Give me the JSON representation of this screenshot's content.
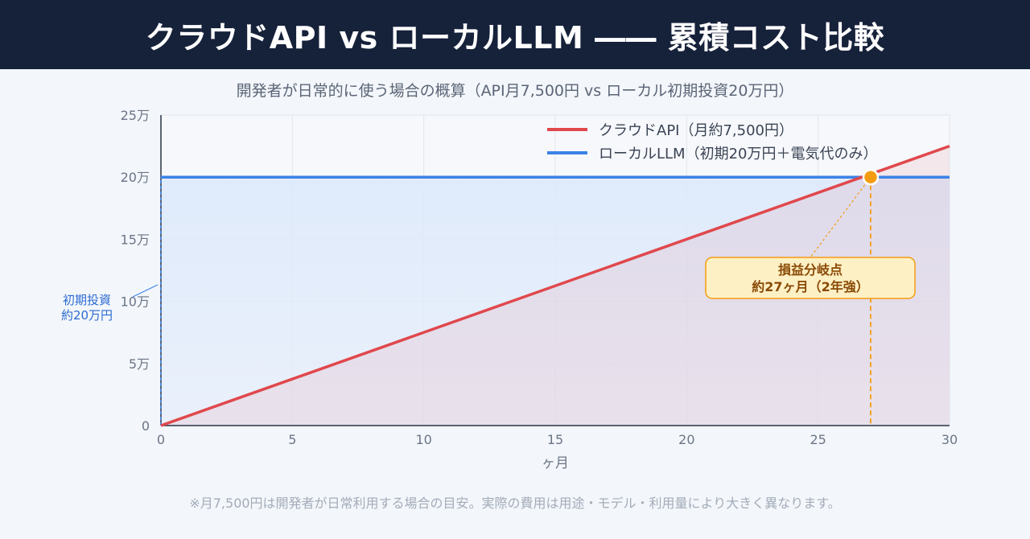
{
  "header": {
    "title": "クラウドAPI vs ローカルLLM ―― 累積コスト比較"
  },
  "footnote": "※月7,500円は開発者が日常利用する場合の目安。実際の費用は用途・モデル・利用量により大きく異なります。",
  "colors": {
    "cloud": "#e0484c",
    "local": "#3b82e6",
    "breakeven": "#f39c12"
  },
  "chart_data": {
    "type": "line",
    "title": "開発者が日常的に使う場合の概算（API月7,500円 vs ローカル初期投資20万円）",
    "xlabel": "ヶ月",
    "ylabel": "",
    "xlim": [
      0,
      30
    ],
    "ylim": [
      0,
      250000
    ],
    "xticks": [
      0,
      5,
      10,
      15,
      20,
      25,
      30
    ],
    "xtick_labels": [
      "0",
      "5",
      "10",
      "15",
      "20",
      "25",
      "30"
    ],
    "yticks": [
      0,
      50000,
      100000,
      150000,
      200000,
      250000
    ],
    "ytick_labels": [
      "0",
      "5万",
      "10万",
      "15万",
      "20万",
      "25万"
    ],
    "grid": true,
    "legend_position": "top-right",
    "series": [
      {
        "name": "クラウドAPI（月約7,500円）",
        "color": "#e0484c",
        "x": [
          0,
          30
        ],
        "y": [
          0,
          225000
        ]
      },
      {
        "name": "ローカルLLM（初期20万円＋電気代のみ）",
        "color": "#3b82e6",
        "x": [
          0,
          0,
          30
        ],
        "y": [
          0,
          200000,
          200000
        ]
      }
    ],
    "breakeven": {
      "x": 27,
      "y": 200000,
      "label_line1": "損益分岐点",
      "label_line2": "約27ヶ月（2年強）"
    },
    "initial_note": {
      "line1": "初期投資",
      "line2": "約20万円",
      "x": 0,
      "y": 200000
    }
  }
}
